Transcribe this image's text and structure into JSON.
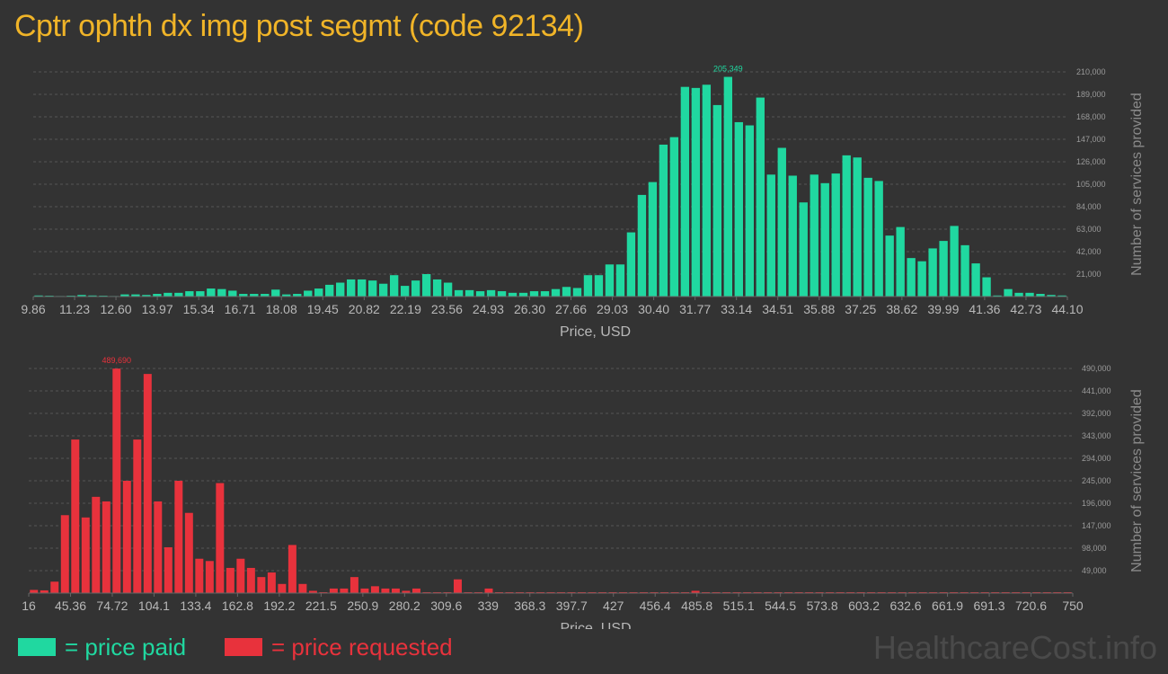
{
  "title": "Cptr ophth dx img post segmt (code 92134)",
  "legend": {
    "paid_label": "= price paid",
    "requested_label": "= price requested"
  },
  "watermark": "HealthcareCost.info",
  "colors": {
    "paid": "#20d8a0",
    "requested": "#e8323c",
    "title": "#f0b428",
    "background": "#333333"
  },
  "chart_data": [
    {
      "type": "bar",
      "name": "paid",
      "xlabel": "Price, USD",
      "ylabel": "Number of services provided",
      "x_range": [
        9.86,
        44.1
      ],
      "xticks": [
        "9.86",
        "11.23",
        "12.60",
        "13.97",
        "15.34",
        "16.71",
        "18.08",
        "19.45",
        "20.82",
        "22.19",
        "23.56",
        "24.93",
        "26.30",
        "27.66",
        "29.03",
        "30.40",
        "31.77",
        "33.14",
        "34.51",
        "35.88",
        "37.25",
        "38.62",
        "39.99",
        "41.36",
        "42.73",
        "44.10"
      ],
      "yticks": [
        "21,000",
        "42,000",
        "63,000",
        "84,000",
        "105,000",
        "126,000",
        "147,000",
        "168,000",
        "189,000",
        "210,000"
      ],
      "ylim": [
        0,
        210000
      ],
      "peak_label": "205,349",
      "grid": true,
      "values": [
        1000,
        800,
        500,
        800,
        1500,
        1000,
        800,
        500,
        2000,
        2000,
        1500,
        2500,
        3500,
        3500,
        5000,
        5000,
        7500,
        7000,
        5500,
        2500,
        2500,
        2500,
        6500,
        2000,
        2500,
        5500,
        7500,
        11000,
        13000,
        16000,
        16000,
        15000,
        12000,
        20000,
        10000,
        15000,
        21000,
        16000,
        13000,
        6000,
        6000,
        5000,
        6000,
        5000,
        3500,
        3500,
        5000,
        5000,
        7000,
        9000,
        8000,
        20000,
        20000,
        30000,
        30000,
        60000,
        95000,
        107000,
        142000,
        149000,
        196000,
        195000,
        198000,
        179000,
        205349,
        163000,
        160000,
        186000,
        114000,
        139000,
        113000,
        88000,
        114000,
        106000,
        115000,
        132000,
        130000,
        111000,
        108000,
        57000,
        65000,
        36000,
        33000,
        45000,
        52000,
        66000,
        48000,
        31000,
        18000,
        1000,
        7000,
        3500,
        3500,
        2500,
        1500,
        1000
      ]
    },
    {
      "type": "bar",
      "name": "requested",
      "xlabel": "Price, USD",
      "ylabel": "Number of services provided",
      "x_range": [
        16,
        750
      ],
      "xticks": [
        "16",
        "45.36",
        "74.72",
        "104.1",
        "133.4",
        "162.8",
        "192.2",
        "221.5",
        "250.9",
        "280.2",
        "309.6",
        "339",
        "368.3",
        "397.7",
        "427",
        "456.4",
        "485.8",
        "515.1",
        "544.5",
        "573.8",
        "603.2",
        "632.6",
        "661.9",
        "691.3",
        "720.6",
        "750"
      ],
      "yticks": [
        "49,000",
        "98,000",
        "147,000",
        "196,000",
        "245,000",
        "294,000",
        "343,000",
        "392,000",
        "441,000",
        "490,000"
      ],
      "ylim": [
        0,
        490000
      ],
      "peak_label": "489,690",
      "grid": true,
      "values": [
        7000,
        6000,
        25000,
        170000,
        335000,
        165000,
        210000,
        200000,
        489690,
        245000,
        335000,
        478000,
        200000,
        100000,
        245000,
        175000,
        75000,
        70000,
        240000,
        55000,
        75000,
        55000,
        35000,
        45000,
        20000,
        105000,
        20000,
        5000,
        2000,
        10000,
        10000,
        35000,
        10000,
        15000,
        10000,
        10000,
        5000,
        10000,
        2000,
        2000,
        2000,
        30000,
        2000,
        2000,
        10000,
        2000,
        2000,
        2000,
        2000,
        2000,
        2000,
        2000,
        2000,
        2000,
        2000,
        2000,
        2000,
        2000,
        2000,
        2000,
        2000,
        2000,
        2000,
        2000,
        5000,
        2000,
        2000,
        2000,
        2000,
        2000,
        2000,
        2000,
        2000,
        2000,
        2000,
        2000,
        2000,
        2000,
        2000,
        2000,
        2000,
        2000,
        2000,
        2000,
        2000,
        2000,
        2000,
        2000,
        2000,
        2000,
        2000,
        2000,
        2000,
        2000,
        2000,
        2000,
        2000,
        2000,
        2000,
        2000,
        2000
      ]
    }
  ]
}
